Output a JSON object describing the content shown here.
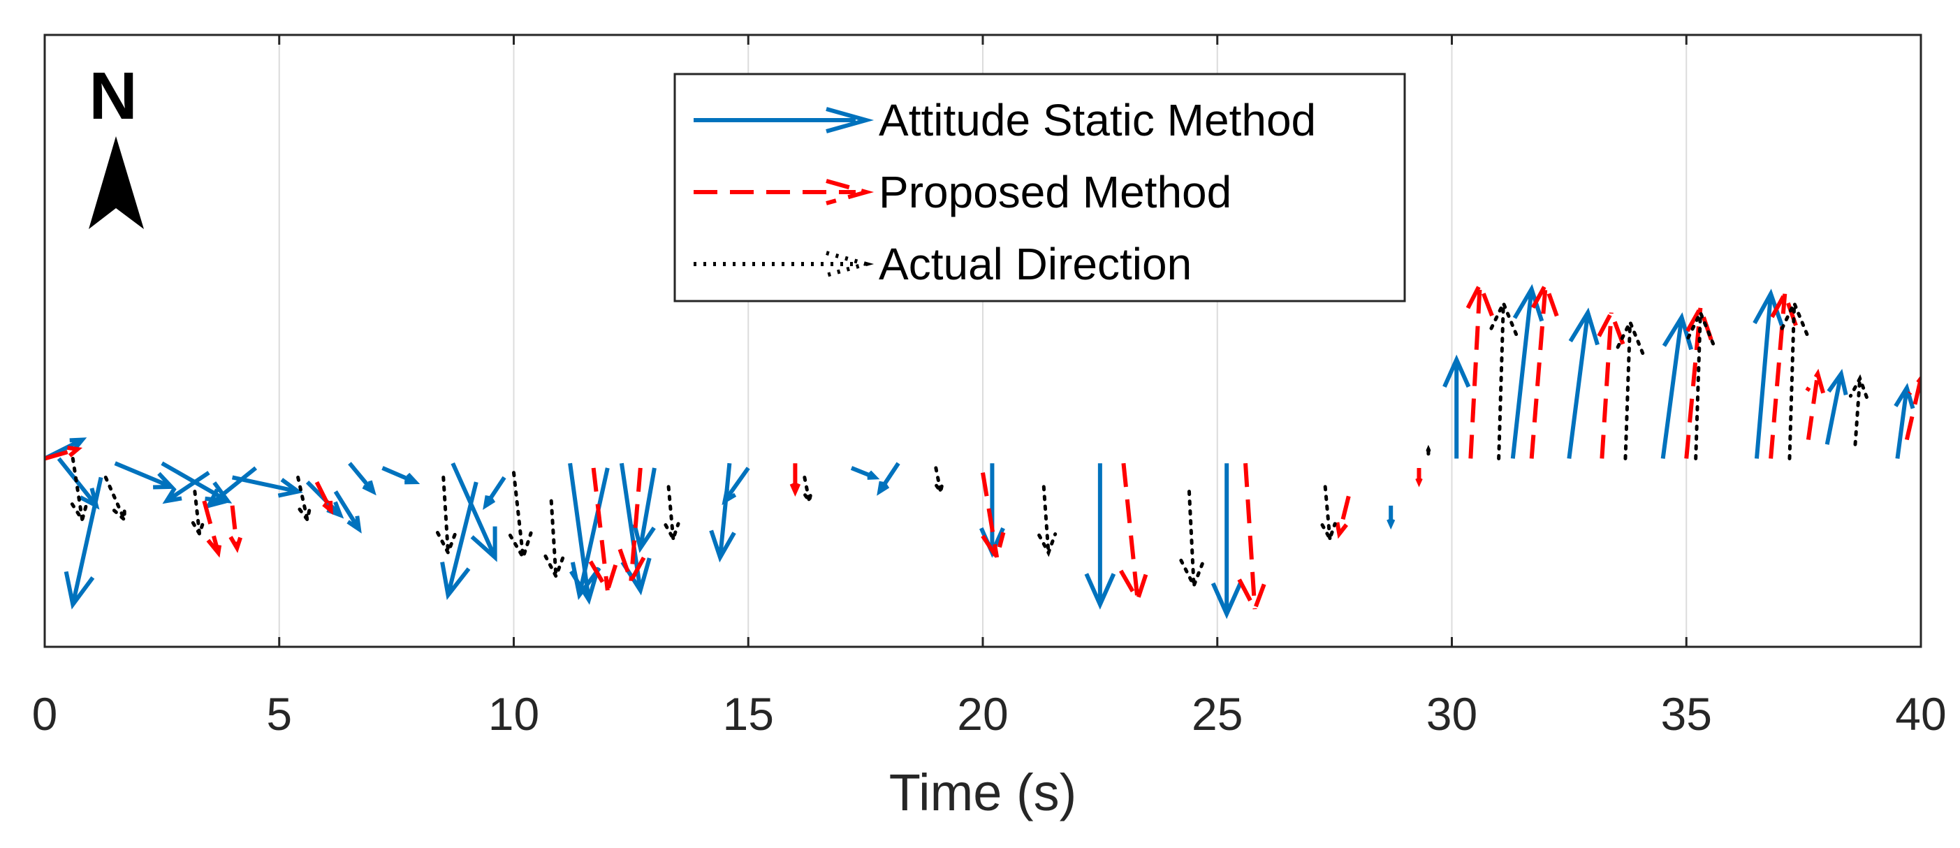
{
  "chart_data": {
    "type": "quiver",
    "title": "",
    "xlabel": "Time (s)",
    "ylabel": "",
    "xlim": [
      0,
      40
    ],
    "ylim": [
      -4,
      9
    ],
    "xticks": [
      0,
      5,
      10,
      15,
      20,
      25,
      30,
      35,
      40
    ],
    "grid": "vertical",
    "legend_position": "top-center",
    "north_indicator": "N",
    "series": [
      {
        "name": "Attitude Static Method",
        "color": "#0072BD",
        "style": "solid",
        "arrows": [
          [
            0,
            0,
            0.8,
            0.4
          ],
          [
            0.3,
            0,
            0.8,
            -1
          ],
          [
            1.2,
            -0.4,
            -0.6,
            -2.7
          ],
          [
            1.5,
            -0.1,
            1.2,
            -0.5
          ],
          [
            2.5,
            -0.1,
            1.4,
            -0.8
          ],
          [
            3.5,
            -0.3,
            -0.9,
            -0.6
          ],
          [
            4,
            -0.4,
            1.4,
            -0.3
          ],
          [
            4.5,
            -0.2,
            -1,
            -0.8
          ],
          [
            5.6,
            -0.5,
            0.7,
            -0.7
          ],
          [
            6.2,
            -0.7,
            0.5,
            -0.8
          ],
          [
            6.5,
            -0.1,
            0.5,
            -0.6
          ],
          [
            7.2,
            -0.2,
            0.7,
            -0.3
          ],
          [
            8.7,
            -0.1,
            0.9,
            -2
          ],
          [
            9.2,
            -0.5,
            -0.6,
            -2.4
          ],
          [
            9.8,
            -0.4,
            -0.4,
            -0.6
          ],
          [
            11.2,
            -0.1,
            0.4,
            -2.9
          ],
          [
            12,
            -0.2,
            -0.6,
            -2.7
          ],
          [
            12.3,
            -0.1,
            0.4,
            -2.7
          ],
          [
            13,
            -0.2,
            -0.3,
            -1.7
          ],
          [
            14.6,
            -0.1,
            -0.2,
            -2
          ],
          [
            15,
            -0.2,
            -0.5,
            -0.7
          ],
          [
            17.2,
            -0.2,
            0.5,
            -0.2
          ],
          [
            18.2,
            -0.1,
            -0.4,
            -0.6
          ],
          [
            20.2,
            -0.1,
            0,
            -1.9
          ],
          [
            22.5,
            -0.1,
            0,
            -3
          ],
          [
            25.2,
            -0.1,
            0,
            -3.2
          ],
          [
            28.7,
            -1,
            0,
            -0.4
          ],
          [
            30.1,
            0,
            0,
            2.1
          ],
          [
            31.3,
            0,
            0.4,
            3.6
          ],
          [
            32.5,
            0,
            0.4,
            3.1
          ],
          [
            34.5,
            0,
            0.4,
            3
          ],
          [
            36.5,
            0,
            0.3,
            3.5
          ],
          [
            38,
            0.3,
            0.3,
            1.5
          ],
          [
            39.5,
            0,
            0.2,
            1.5
          ]
        ]
      },
      {
        "name": "Proposed Method",
        "color": "#FF0000",
        "style": "dashed",
        "arrows": [
          [
            0,
            0,
            0.7,
            0.2
          ],
          [
            3.4,
            -0.9,
            0.3,
            -1.1
          ],
          [
            4,
            -1,
            0.1,
            -0.9
          ],
          [
            5.8,
            -0.5,
            0.3,
            -0.6
          ],
          [
            11.7,
            -0.2,
            0.3,
            -2.6
          ],
          [
            12.7,
            -0.2,
            -0.2,
            -2.4
          ],
          [
            16,
            -0.1,
            0,
            -0.6
          ],
          [
            20,
            -0.3,
            0.3,
            -1.8
          ],
          [
            23,
            -0.1,
            0.3,
            -2.9
          ],
          [
            25.6,
            -0.1,
            0.2,
            -3.1
          ],
          [
            27.8,
            -0.8,
            -0.2,
            -0.8
          ],
          [
            29.3,
            -0.2,
            0,
            -0.3
          ],
          [
            30.4,
            0,
            0.2,
            3.7
          ],
          [
            31.7,
            0,
            0.3,
            3.7
          ],
          [
            33.2,
            0,
            0.2,
            3.1
          ],
          [
            35,
            0,
            0.3,
            3.2
          ],
          [
            36.8,
            0,
            0.3,
            3.5
          ],
          [
            37.6,
            0.4,
            0.2,
            1.4
          ],
          [
            39.7,
            0.4,
            0.3,
            1.3
          ]
        ]
      },
      {
        "name": "Actual Direction",
        "color": "#000000",
        "style": "dotted",
        "arrows": [
          [
            0.6,
            0,
            0.2,
            -1.3
          ],
          [
            1.3,
            -0.4,
            0.4,
            -0.9
          ],
          [
            3.2,
            -0.7,
            0.1,
            -0.9
          ],
          [
            5.4,
            -0.4,
            0.2,
            -0.9
          ],
          [
            8.5,
            -0.4,
            0.1,
            -1.6
          ],
          [
            10,
            -0.3,
            0.2,
            -1.8
          ],
          [
            10.8,
            -0.9,
            0.1,
            -1.6
          ],
          [
            13.3,
            -0.6,
            0.1,
            -1.1
          ],
          [
            16.2,
            -0.4,
            0.1,
            -0.5
          ],
          [
            19,
            -0.2,
            0.1,
            -0.5
          ],
          [
            21.3,
            -0.6,
            0.1,
            -1.4
          ],
          [
            24.4,
            -0.7,
            0.1,
            -2
          ],
          [
            27.3,
            -0.6,
            0.1,
            -1.1
          ],
          [
            29.5,
            0.1,
            0,
            0.1
          ],
          [
            31,
            0,
            0.1,
            3.3
          ],
          [
            33.7,
            0,
            0.1,
            2.9
          ],
          [
            35.2,
            0,
            0.1,
            3.1
          ],
          [
            37.2,
            0,
            0.1,
            3.3
          ],
          [
            38.6,
            0.3,
            0.1,
            1.4
          ]
        ]
      }
    ]
  }
}
